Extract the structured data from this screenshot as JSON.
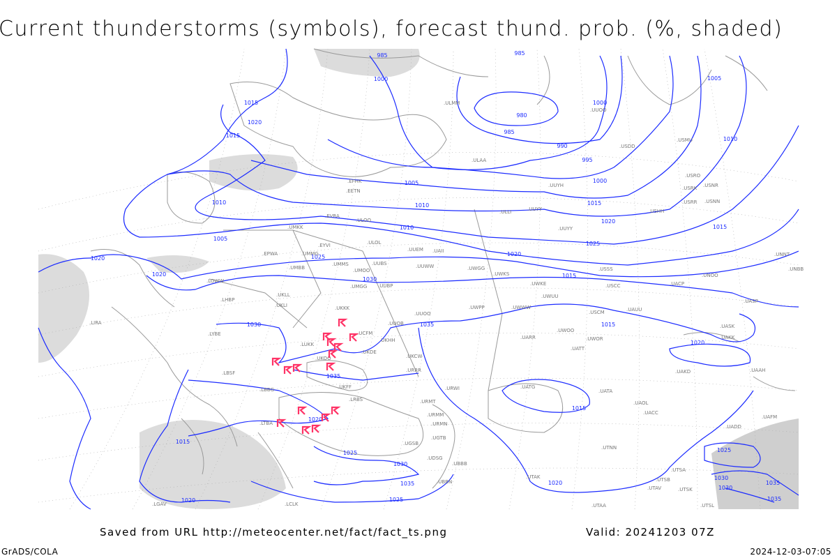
{
  "title": "Current thunderstorms (symbols), forecast thund. prob. (%, shaded)",
  "footer": {
    "saved_from": "Saved from URL http://meteocenter.net/fact/fact_ts.png",
    "valid": "Valid: 20241203 07Z",
    "credit": "GrADS/COLA",
    "timestamp": "2024-12-03-07:05"
  },
  "colors": {
    "isobar": "#1b2bff",
    "thunderstorm_symbol": "#ff3366",
    "shading": "#d9d9d9",
    "coastline": "#999999"
  },
  "isobar_labels": [
    "985",
    "985",
    "1000",
    "980",
    "985",
    "990",
    "995",
    "1000",
    "1005",
    "1010",
    "1015",
    "1020",
    "1015",
    "1010",
    "1005",
    "1010",
    "1015",
    "1020",
    "1025",
    "1030",
    "1035",
    "1020",
    "1020",
    "1020",
    "1015",
    "1015",
    "1020",
    "1025",
    "1030",
    "1035",
    "1010",
    "1005",
    "1000",
    "1015",
    "1020",
    "1025",
    "1030",
    "1035",
    "1020",
    "1025",
    "1015",
    "1020",
    "1015",
    "1025",
    "1030",
    "1035",
    "1035",
    "1030"
  ],
  "stations": [
    ".EFHK",
    ".EETN",
    ".EVRA",
    ".ULOO",
    ".UMKK",
    ".EYVI",
    ".UMMG",
    ".EPWA",
    ".UMBB",
    ".ULOL",
    ".UUEM",
    ".UUWW",
    ".UMMS",
    ".UMOO",
    ".UUBS",
    ".UWGG",
    ".UWKS",
    ".LOWW",
    ".LHBP",
    ".UKLL",
    ".UKLI",
    ".UMGG",
    ".UUBP",
    ".UKKK",
    ".UUOO",
    ".UWPP",
    ".UUOB",
    ".UKHH",
    ".LUKK",
    ".UKOO",
    ".UKDE",
    ".UKCW",
    ".LRBS",
    ".LBSF",
    ".LBBG",
    ".UKFF",
    ".URRR",
    ".URWI",
    ".URMT",
    ".URMM",
    ".URMN",
    ".LTBA",
    ".UGSB",
    ".UBBB",
    ".UWWW",
    ".UWKE",
    ".UWUU",
    ".UARR",
    ".UWOO",
    ".UATT",
    ".UATG",
    ".UATA",
    ".UAOL",
    ".UACC",
    ".USSS",
    ".USCC",
    ".UACP",
    ".USCM",
    ".UAUU",
    ".UWOR",
    ".USRR",
    ".USNN",
    ".USHH",
    ".UUYH",
    ".UUYY",
    ".ULAA",
    ".ULMM",
    ".UUOO",
    ".USDD",
    ".USMU",
    ".USRO",
    ".USRK",
    ".USNR",
    ".UNOO",
    ".UNNT",
    ".UNBB",
    ".UASP",
    ".UASK",
    ".UAKD",
    ".UAKK",
    ".UAAH",
    ".UADD",
    ".UAFM",
    ".UTSA",
    ".UTSB",
    ".UTSK",
    ".UTSL",
    ".UTAV",
    ".UTAA",
    ".UTNN",
    ".UTAK",
    ".UBBN",
    ".UGTB",
    ".UDSG",
    ".LIRA",
    ".LYBE",
    ".LCLK",
    ".LGAV",
    ".ULLI",
    ".UUYY",
    ".UCFM",
    ".UAII"
  ]
}
